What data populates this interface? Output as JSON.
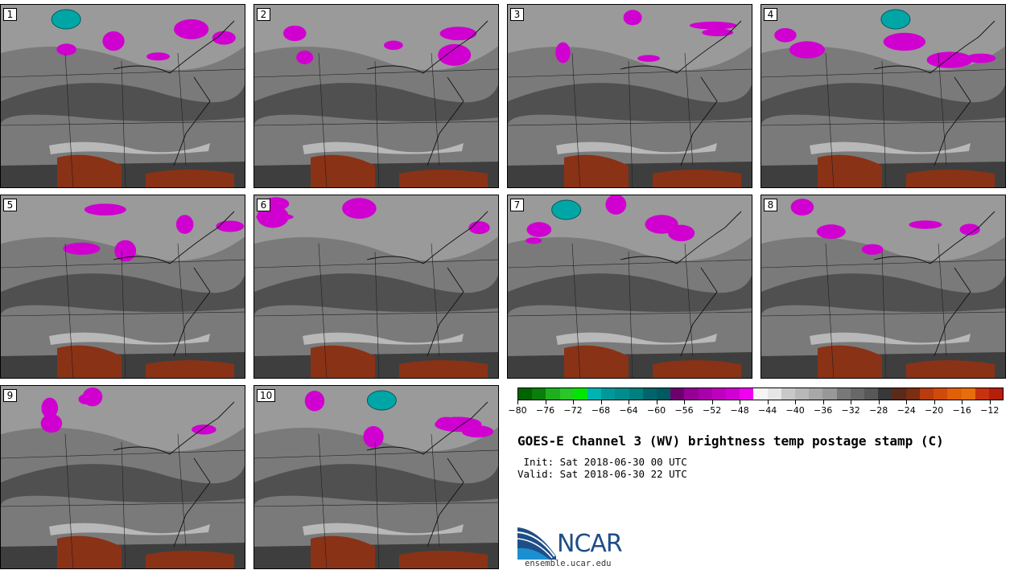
{
  "title": "GOES-E Channel 3 (WV) brightness temp postage stamp (C)",
  "init_line": " Init: Sat 2018-06-30 00 UTC",
  "valid_line": "Valid: Sat 2018-06-30 22 UTC",
  "members": [
    "1",
    "2",
    "3",
    "4",
    "5",
    "6",
    "7",
    "8",
    "9",
    "10"
  ],
  "colorbar": {
    "ticks": [
      "−80",
      "−76",
      "−72",
      "−68",
      "−64",
      "−60",
      "−56",
      "−52",
      "−48",
      "−44",
      "−40",
      "−36",
      "−32",
      "−28",
      "−24",
      "−20",
      "−16",
      "−12"
    ],
    "min": -80,
    "max": -10,
    "step": 2,
    "colors": [
      "#006400",
      "#0a7d0a",
      "#149614",
      "#1eaf1e",
      "#28c828",
      "#00e600",
      "#00b3b3",
      "#00a6a6",
      "#009999",
      "#008c8c",
      "#007f7f",
      "#006f72",
      "#00646b",
      "#005a60",
      "#6e006e",
      "#820082",
      "#960096",
      "#aa00aa",
      "#be00be",
      "#d200d2",
      "#e600e6",
      "#f000f0",
      "#f5f5f5",
      "#e6e6e6",
      "#d6d6d6",
      "#c8c8c8",
      "#b8b8b8",
      "#a8a8a8",
      "#989898",
      "#888888",
      "#787878",
      "#686868",
      "#585858",
      "#484848",
      "#383838",
      "#5a2a1a",
      "#7a2e12",
      "#9a3210",
      "#b83c0e",
      "#d04a0c",
      "#e0600a",
      "#e86e0a",
      "#d8480e",
      "#c8320e",
      "#b41e0a"
    ]
  },
  "logo": {
    "text": "NCAR",
    "site": "ensemble.ucar.edu",
    "brand_color": "#1f4e87"
  }
}
